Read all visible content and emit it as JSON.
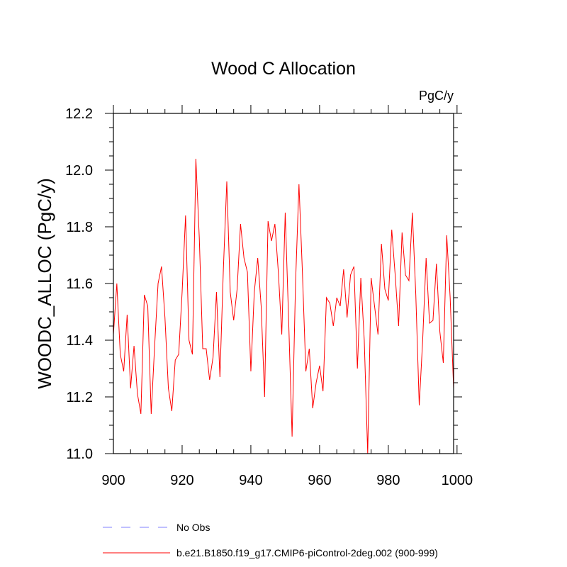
{
  "chart_data": {
    "type": "line",
    "title": "Wood C Allocation",
    "units": "PgC/y",
    "xlabel": "",
    "ylabel": "WOODC_ALLOC  (PgC/y)",
    "xlim": [
      900,
      999
    ],
    "ylim": [
      11.0,
      12.2
    ],
    "xticks": [
      900,
      920,
      940,
      960,
      980,
      1000
    ],
    "yticks": [
      11.0,
      11.2,
      11.4,
      11.6,
      11.8,
      12.0,
      12.2
    ],
    "ytick_labels": [
      "11.0",
      "11.2",
      "11.4",
      "11.6",
      "11.8",
      "12.0",
      "12.2"
    ],
    "series": [
      {
        "name": "b.e21.B1850.f19_g17.CMIP6-piControl-2deg.002 (900-999)",
        "color": "#ff0000",
        "style": "solid",
        "x_start": 900,
        "values": [
          11.42,
          11.6,
          11.35,
          11.29,
          11.49,
          11.23,
          11.38,
          11.21,
          11.14,
          11.56,
          11.52,
          11.14,
          11.38,
          11.6,
          11.66,
          11.48,
          11.23,
          11.15,
          11.33,
          11.35,
          11.57,
          11.84,
          11.4,
          11.35,
          12.04,
          11.76,
          11.37,
          11.37,
          11.26,
          11.34,
          11.57,
          11.27,
          11.65,
          11.96,
          11.57,
          11.47,
          11.58,
          11.81,
          11.69,
          11.64,
          11.29,
          11.57,
          11.69,
          11.52,
          11.2,
          11.82,
          11.75,
          11.81,
          11.64,
          11.42,
          11.85,
          11.47,
          11.06,
          11.6,
          11.95,
          11.64,
          11.29,
          11.37,
          11.16,
          11.25,
          11.31,
          11.22,
          11.55,
          11.53,
          11.45,
          11.55,
          11.52,
          11.65,
          11.48,
          11.63,
          11.66,
          11.3,
          11.62,
          11.4,
          11.0,
          11.62,
          11.52,
          11.42,
          11.74,
          11.58,
          11.54,
          11.79,
          11.63,
          11.45,
          11.78,
          11.63,
          11.61,
          11.85,
          11.56,
          11.17,
          11.4,
          11.69,
          11.46,
          11.47,
          11.67,
          11.43,
          11.32,
          11.77,
          11.55,
          11.23
        ]
      }
    ],
    "legend": [
      {
        "label": "No Obs",
        "color": "#8080ff",
        "style": "dashed"
      },
      {
        "label": "b.e21.B1850.f19_g17.CMIP6-piControl-2deg.002 (900-999)",
        "color": "#ff0000",
        "style": "solid"
      }
    ],
    "legend_position": "bottom-left"
  }
}
